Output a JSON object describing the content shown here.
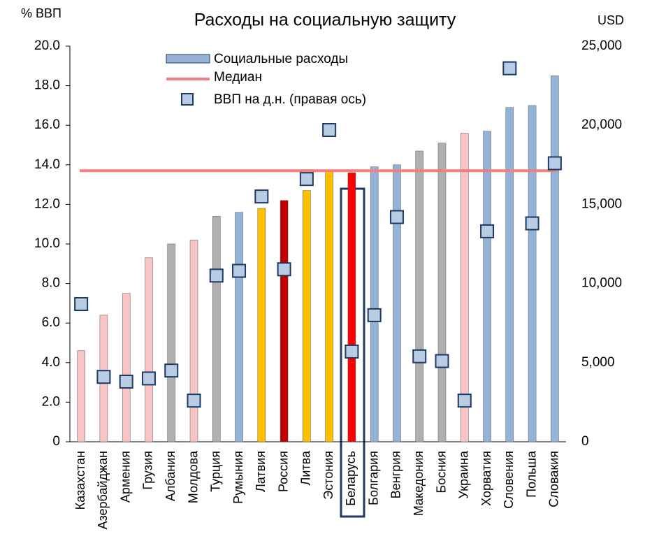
{
  "chart_data": {
    "type": "bar",
    "title": "Расходы на социальную защиту",
    "y_label": "% ВВП",
    "y2_label": "USD",
    "categories": [
      "Казахстан",
      "Азербайджан",
      "Армения",
      "Грузия",
      "Албания",
      "Молдова",
      "Турция",
      "Румыния",
      "Латвия",
      "Россия",
      "Литва",
      "Эстония",
      "Беларусь",
      "Болгария",
      "Венгрия",
      "Македония",
      "Босния",
      "Украина",
      "Хорватия",
      "Словения",
      "Польша",
      "Словакия"
    ],
    "series": [
      {
        "name": "Социальные расходы",
        "type": "bar",
        "color": "#95b3d7",
        "values": [
          4.6,
          6.4,
          7.5,
          9.3,
          10.0,
          10.2,
          11.4,
          11.6,
          11.8,
          12.2,
          12.7,
          13.7,
          13.6,
          13.9,
          14.0,
          14.7,
          15.1,
          15.6,
          15.7,
          16.9,
          17.0,
          18.5
        ],
        "colors": [
          "#f8c4c4",
          "#f8c4c4",
          "#f8c4c4",
          "#f8c4c4",
          "#b0b0b0",
          "#f8c4c4",
          "#b0b0b0",
          "#95b3d7",
          "#ffc000",
          "#c00000",
          "#ffc000",
          "#ffc000",
          "#ff0000",
          "#95b3d7",
          "#95b3d7",
          "#b0b0b0",
          "#b0b0b0",
          "#f8c4c4",
          "#95b3d7",
          "#95b3d7",
          "#95b3d7",
          "#95b3d7"
        ]
      },
      {
        "name": "ВВП на д.н. (правая ось)",
        "type": "scatter",
        "axis": "y2",
        "color": "#b8cce4",
        "values": [
          8700,
          4100,
          3800,
          4000,
          4500,
          2600,
          10500,
          10800,
          15500,
          10900,
          16600,
          19700,
          5700,
          8000,
          14200,
          5400,
          5100,
          2600,
          13300,
          23600,
          13800,
          17600
        ]
      }
    ],
    "median": {
      "name": "Медиан",
      "value": 13.7,
      "color": "#f08080"
    },
    "ylim": [
      0,
      20
    ],
    "yticks": [
      0,
      {
        "value": 2,
        "label": "2.0"
      },
      {
        "value": 4,
        "label": "4.0"
      },
      {
        "value": 6,
        "label": "6.0"
      },
      {
        "value": 8,
        "label": "8.0"
      },
      {
        "value": 10,
        "label": "10.0"
      },
      {
        "value": 12,
        "label": "12.0"
      },
      {
        "value": 14,
        "label": "14.0"
      },
      {
        "value": 16,
        "label": "16.0"
      },
      {
        "value": 18,
        "label": "18.0"
      },
      {
        "value": 20,
        "label": "20.0"
      }
    ],
    "y2lim": [
      0,
      25000
    ],
    "y2ticks": [
      0,
      {
        "value": 5000,
        "label": "5,000"
      },
      {
        "value": 10000,
        "label": "10,000"
      },
      {
        "value": 15000,
        "label": "15,000"
      },
      {
        "value": 20000,
        "label": "20,000"
      },
      {
        "value": 25000,
        "label": "25,000"
      }
    ]
  }
}
